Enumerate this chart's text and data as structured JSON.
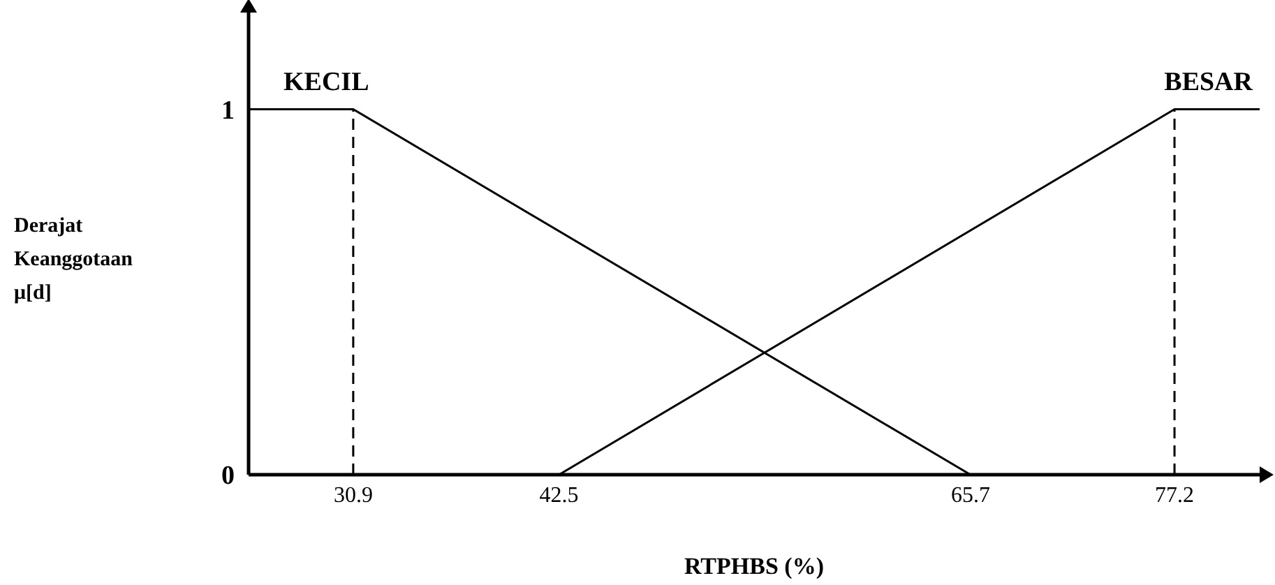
{
  "chart_data": {
    "type": "line",
    "xlabel": "RTPHBS (%)",
    "ylabel": "Derajat\nKeanggotaan\nμ[d]",
    "series": [
      {
        "name": "KECIL",
        "color": "#000000",
        "x": [
          25,
          30.9,
          65.7
        ],
        "values": [
          1,
          1,
          0
        ]
      },
      {
        "name": "BESAR",
        "color": "#000000",
        "x": [
          42.5,
          77.2,
          82
        ],
        "values": [
          0,
          1,
          1
        ]
      }
    ],
    "xlim": [
      25,
      82
    ],
    "xticks": [
      30.9,
      42.5,
      65.7,
      77.2
    ],
    "ylim": [
      0,
      1.28
    ],
    "yticks": [
      0,
      1
    ],
    "ref_lines": [
      {
        "axis": "x",
        "value": 30.9,
        "line_style": "dashed",
        "color": "#000000"
      },
      {
        "axis": "x",
        "value": 77.2,
        "line_style": "dashed",
        "color": "#000000"
      }
    ],
    "marker": "none",
    "line_style": "solid",
    "grid": false,
    "legend": false
  }
}
